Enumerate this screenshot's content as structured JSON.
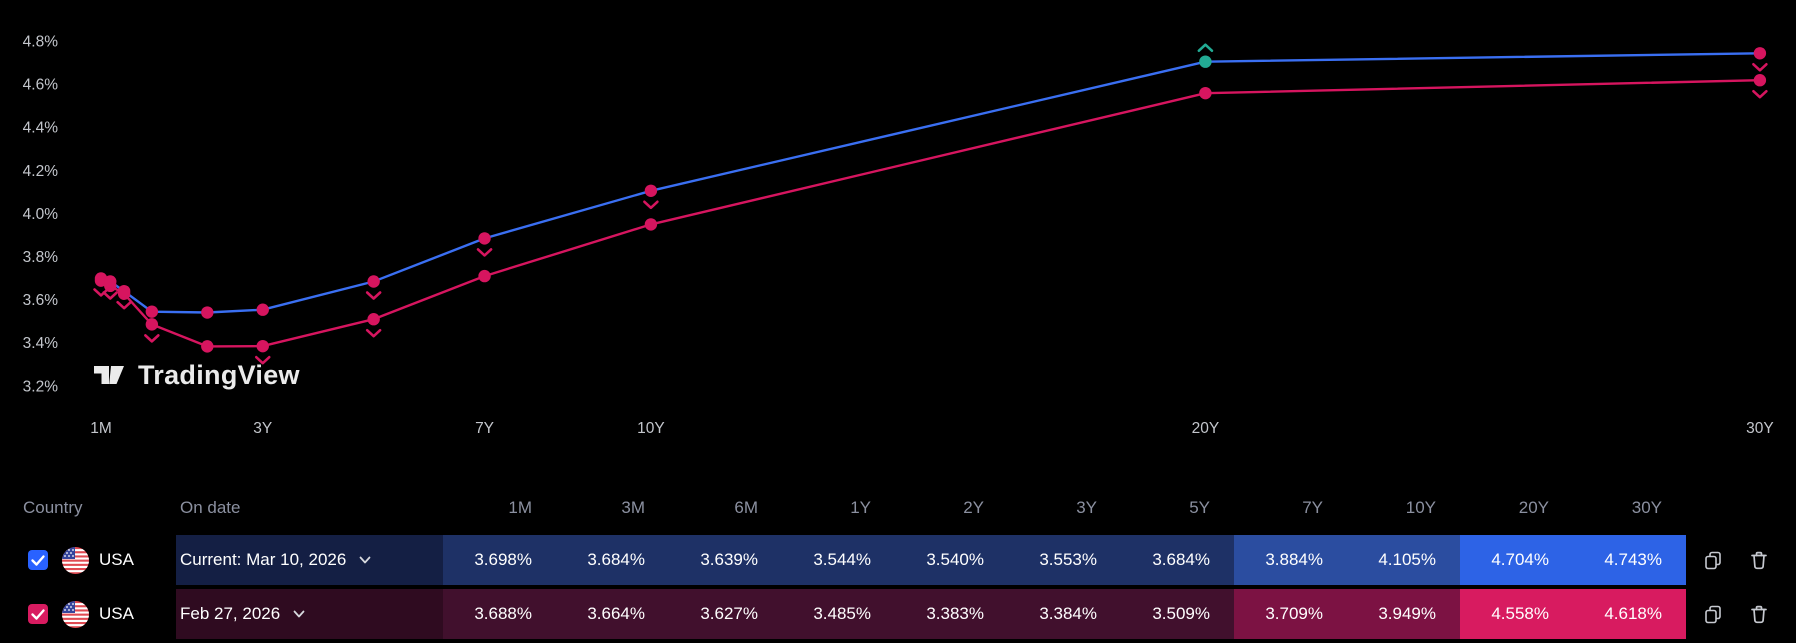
{
  "watermark": {
    "text": "TradingView"
  },
  "chart_data": {
    "type": "line",
    "title": "",
    "x_categories": [
      "1M",
      "3M",
      "6M",
      "1Y",
      "2Y",
      "3Y",
      "5Y",
      "7Y",
      "10Y",
      "20Y",
      "30Y"
    ],
    "x_years": [
      0.083,
      0.25,
      0.5,
      1,
      2,
      3,
      5,
      7,
      10,
      20,
      30
    ],
    "x_axis_ticks": [
      {
        "label": "1M",
        "years": 0.083
      },
      {
        "label": "3Y",
        "years": 3
      },
      {
        "label": "7Y",
        "years": 7
      },
      {
        "label": "10Y",
        "years": 10
      },
      {
        "label": "20Y",
        "years": 20
      },
      {
        "label": "30Y",
        "years": 30
      }
    ],
    "y_tick_labels": [
      "4.8%",
      "4.6%",
      "4.4%",
      "4.2%",
      "4.0%",
      "3.8%",
      "3.6%",
      "3.4%",
      "3.2%"
    ],
    "y_axis_range": [
      3.2,
      4.8
    ],
    "grid": false,
    "legend_position": "none",
    "marker_colors": {
      "down": "#d6155f",
      "up": "#22ab94"
    },
    "series": [
      {
        "name": "Current: Mar 10, 2026",
        "line_color": "#3a6ff2",
        "dot_color": "#d6155f",
        "values": [
          3.698,
          3.684,
          3.639,
          3.544,
          3.54,
          3.553,
          3.684,
          3.884,
          4.105,
          4.704,
          4.743
        ],
        "markers": [
          "down",
          "down",
          "down",
          null,
          null,
          null,
          "down",
          "down",
          "down",
          "up",
          "down"
        ],
        "special_dots": {
          "9": "#22ab94"
        }
      },
      {
        "name": "Feb 27, 2026",
        "line_color": "#d6155f",
        "dot_color": "#d6155f",
        "values": [
          3.688,
          3.664,
          3.627,
          3.485,
          3.383,
          3.384,
          3.509,
          3.709,
          3.949,
          4.558,
          4.618
        ],
        "markers": [
          null,
          null,
          null,
          "down",
          null,
          "down",
          "down",
          null,
          null,
          null,
          "down"
        ]
      }
    ]
  },
  "table": {
    "headers": {
      "country": "Country",
      "on_date": "On date"
    },
    "maturities": [
      "1M",
      "3M",
      "6M",
      "1Y",
      "2Y",
      "3Y",
      "5Y",
      "7Y",
      "10Y",
      "20Y",
      "30Y"
    ],
    "rows": [
      {
        "country": "USA",
        "date_label": "Current: Mar 10, 2026",
        "checked": true,
        "values": [
          "3.698%",
          "3.684%",
          "3.639%",
          "3.544%",
          "3.540%",
          "3.553%",
          "3.684%",
          "3.884%",
          "4.105%",
          "4.704%",
          "4.743%"
        ],
        "colors": {
          "checkbox": "#2962ff",
          "date_bg": "#141f44",
          "cells": [
            "#1e3166",
            "#1e3166",
            "#1e3166",
            "#1e3166",
            "#1e3166",
            "#1e3166",
            "#1e3166",
            "#2b4da0",
            "#2b4da0",
            "#2d63e6",
            "#2d63e6"
          ]
        }
      },
      {
        "country": "USA",
        "date_label": "Feb 27, 2026",
        "checked": true,
        "values": [
          "3.688%",
          "3.664%",
          "3.627%",
          "3.485%",
          "3.383%",
          "3.384%",
          "3.509%",
          "3.709%",
          "3.949%",
          "4.558%",
          "4.618%"
        ],
        "colors": {
          "checkbox": "#d81b60",
          "date_bg": "#2f0b20",
          "cells": [
            "#41102d",
            "#41102d",
            "#41102d",
            "#41102d",
            "#41102d",
            "#41102d",
            "#41102d",
            "#7c1243",
            "#7c1243",
            "#d81b60",
            "#d81b60"
          ]
        }
      }
    ]
  }
}
